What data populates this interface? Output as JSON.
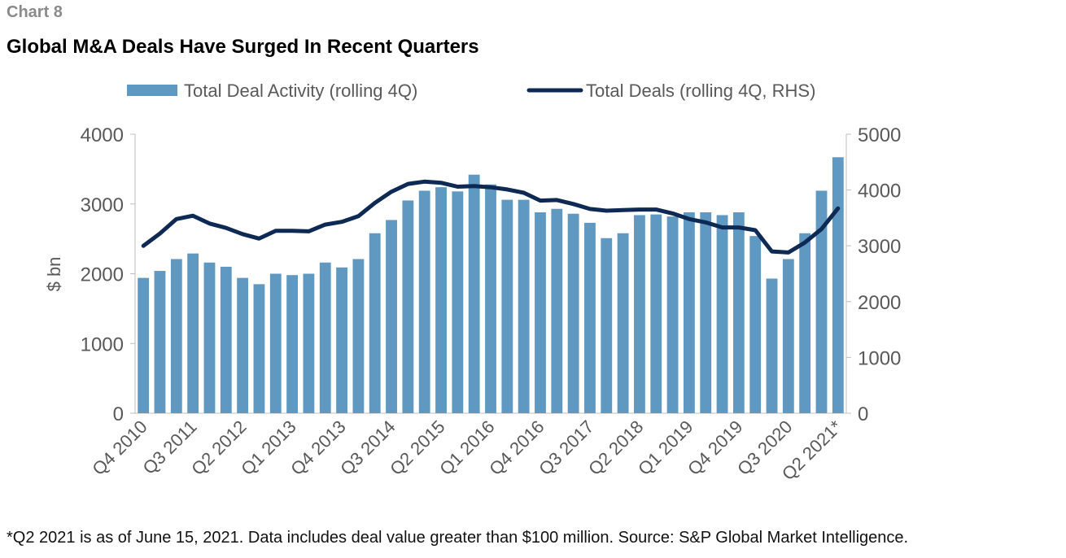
{
  "header": {
    "label": "Chart 8",
    "title": "Global M&A Deals Have Surged In Recent Quarters"
  },
  "footnote": "*Q2 2021 is as of June 15, 2021. Data includes deal value greater than $100 million. Source: S&P Global Market Intelligence.",
  "colors": {
    "bars": "#5f98c0",
    "line": "#0e2a54",
    "axis": "#bfbfbf",
    "text": "#595959"
  },
  "chart_data": {
    "type": "bar",
    "ylabel": "$ bn",
    "ylim": [
      0,
      4000
    ],
    "y2lim": [
      0,
      5000
    ],
    "yticks": [
      "0",
      "1000",
      "2000",
      "3000",
      "4000"
    ],
    "y2ticks": [
      "0",
      "1000",
      "2000",
      "3000",
      "4000",
      "5000"
    ],
    "grid": false,
    "legend": "top",
    "categories": [
      "Q4 2010",
      "Q1 2011",
      "Q2 2011",
      "Q3 2011",
      "Q4 2011",
      "Q1 2012",
      "Q2 2012",
      "Q3 2012",
      "Q4 2012",
      "Q1 2013",
      "Q2 2013",
      "Q3 2013",
      "Q4 2013",
      "Q1 2014",
      "Q2 2014",
      "Q3 2014",
      "Q4 2014",
      "Q1 2015",
      "Q2 2015",
      "Q3 2015",
      "Q4 2015",
      "Q1 2016",
      "Q2 2016",
      "Q3 2016",
      "Q4 2016",
      "Q1 2017",
      "Q2 2017",
      "Q3 2017",
      "Q4 2017",
      "Q1 2018",
      "Q2 2018",
      "Q3 2018",
      "Q4 2018",
      "Q1 2019",
      "Q2 2019",
      "Q3 2019",
      "Q4 2019",
      "Q1 2020",
      "Q2 2020",
      "Q3 2020",
      "Q4 2020",
      "Q1 2021",
      "Q2 2021*"
    ],
    "tick_labels": [
      "Q4 2010",
      "Q3 2011",
      "Q2 2012",
      "Q1 2013",
      "Q4 2013",
      "Q3 2014",
      "Q2 2015",
      "Q1 2016",
      "Q4 2016",
      "Q3 2017",
      "Q2 2018",
      "Q1 2019",
      "Q4 2019",
      "Q3 2020",
      "Q2 2021*"
    ],
    "series": [
      {
        "name": "Total Deal Activity (rolling 4Q)",
        "type": "bar",
        "axis": "left",
        "values": [
          1940,
          2040,
          2210,
          2290,
          2160,
          2100,
          1940,
          1850,
          2000,
          1980,
          2000,
          2160,
          2090,
          2210,
          2580,
          2770,
          3050,
          3190,
          3240,
          3180,
          3420,
          3280,
          3060,
          3060,
          2880,
          2930,
          2860,
          2730,
          2510,
          2580,
          2840,
          2850,
          2820,
          2880,
          2880,
          2840,
          2880,
          2540,
          1930,
          2210,
          2580,
          3190,
          3670
        ]
      },
      {
        "name": "Total Deals (rolling 4Q, RHS)",
        "type": "line",
        "axis": "right",
        "values": [
          3000,
          3220,
          3480,
          3540,
          3400,
          3320,
          3210,
          3130,
          3270,
          3270,
          3260,
          3380,
          3430,
          3530,
          3770,
          3970,
          4110,
          4150,
          4130,
          4060,
          4070,
          4050,
          4010,
          3950,
          3810,
          3820,
          3750,
          3660,
          3630,
          3640,
          3650,
          3650,
          3580,
          3480,
          3420,
          3330,
          3330,
          3280,
          2900,
          2880,
          3060,
          3300,
          3670
        ]
      }
    ]
  }
}
